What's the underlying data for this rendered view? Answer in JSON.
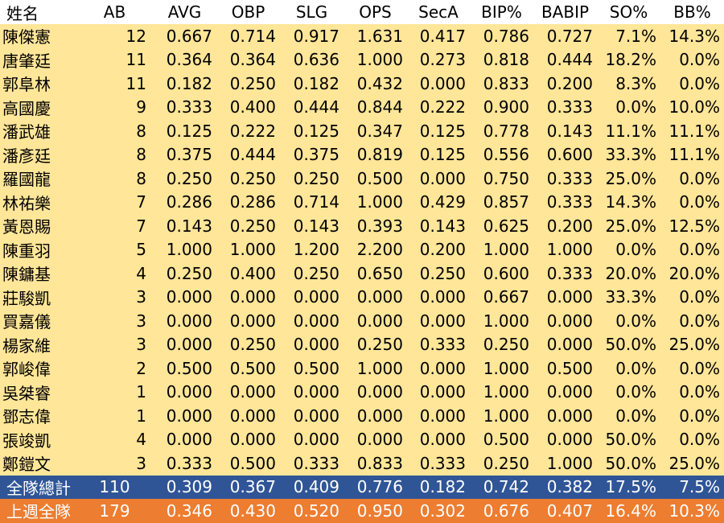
{
  "headers": [
    "姓名",
    "AB",
    "AVG",
    "OBP",
    "SLG",
    "OPS",
    "SecA",
    "BIP%",
    "BABIP",
    "SO%",
    "BB%"
  ],
  "rows": [
    [
      "陳傑憲",
      "12",
      "0.667",
      "0.714",
      "0.917",
      "1.631",
      "0.417",
      "0.786",
      "0.727",
      "7.1%",
      "14.3%"
    ],
    [
      "唐肇廷",
      "11",
      "0.364",
      "0.364",
      "0.636",
      "1.000",
      "0.273",
      "0.818",
      "0.444",
      "18.2%",
      "0.0%"
    ],
    [
      "郭阜林",
      "11",
      "0.182",
      "0.250",
      "0.182",
      "0.432",
      "0.000",
      "0.833",
      "0.200",
      "8.3%",
      "0.0%"
    ],
    [
      "高國慶",
      "9",
      "0.333",
      "0.400",
      "0.444",
      "0.844",
      "0.222",
      "0.900",
      "0.333",
      "0.0%",
      "10.0%"
    ],
    [
      "潘武雄",
      "8",
      "0.125",
      "0.222",
      "0.125",
      "0.347",
      "0.125",
      "0.778",
      "0.143",
      "11.1%",
      "11.1%"
    ],
    [
      "潘彥廷",
      "8",
      "0.375",
      "0.444",
      "0.375",
      "0.819",
      "0.125",
      "0.556",
      "0.600",
      "33.3%",
      "11.1%"
    ],
    [
      "羅國龍",
      "8",
      "0.250",
      "0.250",
      "0.250",
      "0.500",
      "0.000",
      "0.750",
      "0.333",
      "25.0%",
      "0.0%"
    ],
    [
      "林祐樂",
      "7",
      "0.286",
      "0.286",
      "0.714",
      "1.000",
      "0.429",
      "0.857",
      "0.333",
      "14.3%",
      "0.0%"
    ],
    [
      "黃恩賜",
      "7",
      "0.143",
      "0.250",
      "0.143",
      "0.393",
      "0.143",
      "0.625",
      "0.200",
      "25.0%",
      "12.5%"
    ],
    [
      "陳重羽",
      "5",
      "1.000",
      "1.000",
      "1.200",
      "2.200",
      "0.200",
      "1.000",
      "1.000",
      "0.0%",
      "0.0%"
    ],
    [
      "陳鏞基",
      "4",
      "0.250",
      "0.400",
      "0.250",
      "0.650",
      "0.250",
      "0.600",
      "0.333",
      "20.0%",
      "20.0%"
    ],
    [
      "莊駿凱",
      "3",
      "0.000",
      "0.000",
      "0.000",
      "0.000",
      "0.000",
      "0.667",
      "0.000",
      "33.3%",
      "0.0%"
    ],
    [
      "買嘉儀",
      "3",
      "0.000",
      "0.000",
      "0.000",
      "0.000",
      "0.000",
      "1.000",
      "0.000",
      "0.0%",
      "0.0%"
    ],
    [
      "楊家維",
      "3",
      "0.000",
      "0.250",
      "0.000",
      "0.250",
      "0.333",
      "0.250",
      "0.000",
      "50.0%",
      "25.0%"
    ],
    [
      "郭峻偉",
      "2",
      "0.500",
      "0.500",
      "0.500",
      "1.000",
      "0.000",
      "1.000",
      "0.500",
      "0.0%",
      "0.0%"
    ],
    [
      "吳桀睿",
      "1",
      "0.000",
      "0.000",
      "0.000",
      "0.000",
      "0.000",
      "1.000",
      "0.000",
      "0.0%",
      "0.0%"
    ],
    [
      "鄧志偉",
      "1",
      "0.000",
      "0.000",
      "0.000",
      "0.000",
      "0.000",
      "1.000",
      "0.000",
      "0.0%",
      "0.0%"
    ],
    [
      "張竣凱",
      "4",
      "0.000",
      "0.000",
      "0.000",
      "0.000",
      "0.000",
      "0.500",
      "0.000",
      "50.0%",
      "0.0%"
    ],
    [
      "鄭鎧文",
      "3",
      "0.333",
      "0.500",
      "0.333",
      "0.833",
      "0.333",
      "0.250",
      "1.000",
      "50.0%",
      "25.0%"
    ]
  ],
  "team_total": [
    "全隊總計",
    "110",
    "0.309",
    "0.367",
    "0.409",
    "0.776",
    "0.182",
    "0.742",
    "0.382",
    "17.5%",
    "7.5%"
  ],
  "last_week": [
    "上週全隊",
    "179",
    "0.346",
    "0.430",
    "0.520",
    "0.950",
    "0.302",
    "0.676",
    "0.407",
    "16.4%",
    "10.3%"
  ],
  "colors": {
    "player_row_bg": "#FFE699",
    "team_total_bg": "#2F5597",
    "last_week_bg": "#ED7D31",
    "summary_text": "#FFFFFF"
  }
}
